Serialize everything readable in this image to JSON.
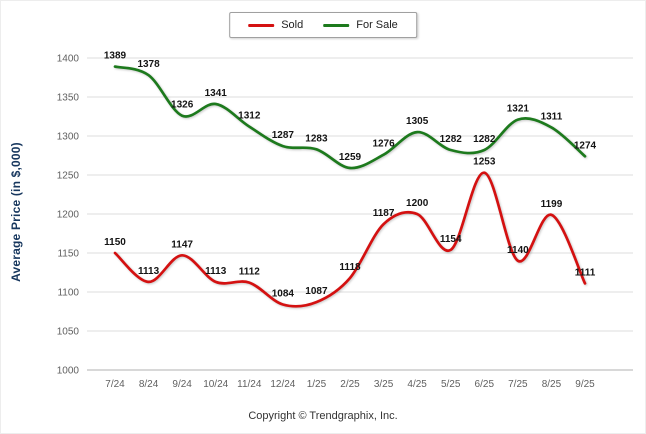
{
  "chart_data": {
    "type": "line",
    "title": "",
    "xlabel": "",
    "ylabel": "Average Price (in $,000)",
    "categories": [
      "7/24",
      "8/24",
      "9/24",
      "10/24",
      "11/24",
      "12/24",
      "1/25",
      "2/25",
      "3/25",
      "4/25",
      "5/25",
      "6/25",
      "7/25",
      "8/25",
      "9/25"
    ],
    "series": [
      {
        "name": "Sold",
        "color": "#d41111",
        "values": [
          1150,
          1113,
          1147,
          1113,
          1112,
          1084,
          1087,
          1118,
          1187,
          1200,
          1154,
          1253,
          1140,
          1199,
          1111
        ]
      },
      {
        "name": "For Sale",
        "color": "#1d7a1d",
        "values": [
          1389,
          1378,
          1326,
          1341,
          1312,
          1287,
          1283,
          1259,
          1276,
          1305,
          1282,
          1282,
          1321,
          1311,
          1274
        ]
      }
    ],
    "ylim": [
      1000,
      1400
    ],
    "ytick_step": 50,
    "grid": true,
    "smooth": true,
    "legend_position": "top-center",
    "colors": {
      "grid": "#dcdcdc",
      "axis": "#b0b0b0",
      "tick_text": "#606060",
      "data_label": "#141414",
      "y_title": "#17375e"
    }
  },
  "footer": {
    "copyright": "Copyright © Trendgraphix, Inc."
  }
}
